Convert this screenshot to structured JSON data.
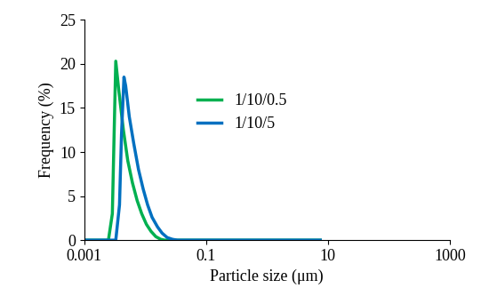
{
  "chart_data": {
    "type": "line",
    "x_label": "Particle size (μm)",
    "y_label": "Frequency (%)",
    "log": "x",
    "grid": false,
    "legend": "center left",
    "xlim": [
      0.001,
      1000
    ],
    "xticks": [
      0.001,
      0.1,
      10,
      1000
    ],
    "ylim": [
      0,
      25
    ],
    "yticks": [
      0,
      5,
      10,
      15,
      20,
      25
    ],
    "series": [
      {
        "name": "1/10/0.5",
        "color": "#00b050",
        "x": [
          0.001,
          0.0025,
          0.0029,
          0.0031,
          0.0033,
          0.0037,
          0.0044,
          0.0052,
          0.0062,
          0.0074,
          0.0088,
          0.0105,
          0.0125,
          0.015,
          0.018,
          0.021,
          7.5
        ],
        "values": [
          0,
          0,
          3,
          12,
          20.3,
          17,
          12.5,
          9,
          6.5,
          4.5,
          3,
          1.8,
          1,
          0.4,
          0.1,
          0,
          0
        ]
      },
      {
        "name": "1/10/5",
        "color": "#0070c0",
        "x": [
          0.001,
          0.0033,
          0.0038,
          0.0041,
          0.0045,
          0.0048,
          0.0055,
          0.0065,
          0.0078,
          0.0093,
          0.011,
          0.013,
          0.016,
          0.019,
          0.023,
          0.028,
          0.034,
          7.5
        ],
        "values": [
          0,
          0,
          4,
          12,
          18.5,
          17.5,
          14,
          11,
          8,
          5.8,
          4,
          2.6,
          1.5,
          0.8,
          0.3,
          0.1,
          0,
          0
        ]
      }
    ]
  }
}
